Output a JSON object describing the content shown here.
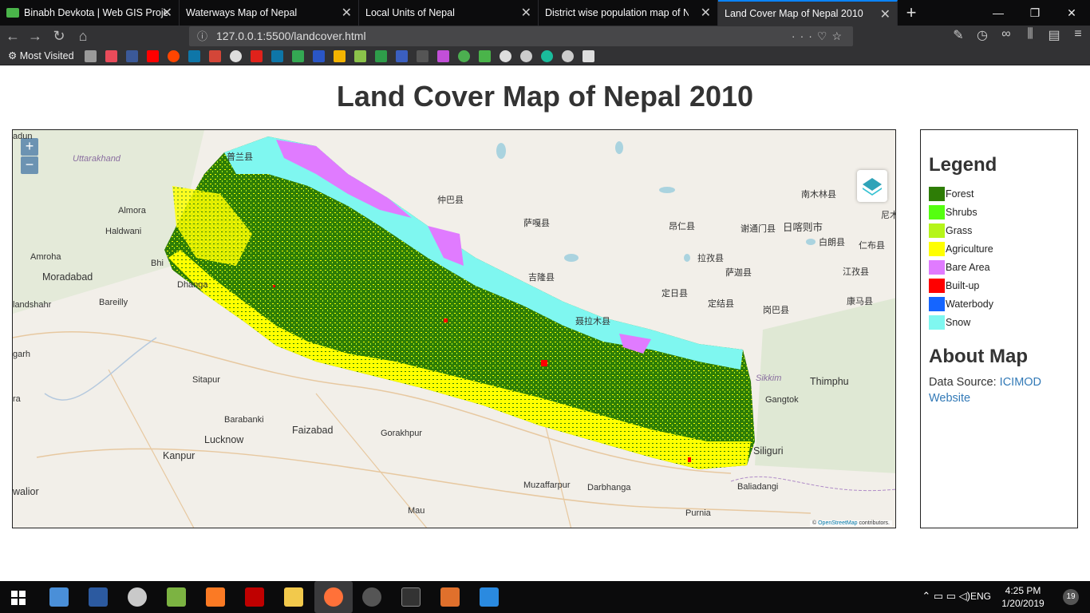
{
  "browser": {
    "tabs": [
      {
        "title": "Binabh Devkota | Web GIS Proje",
        "active": false
      },
      {
        "title": "Waterways Map of Nepal",
        "active": false
      },
      {
        "title": "Local Units of Nepal",
        "active": false
      },
      {
        "title": "District wise population map of Nep",
        "active": false
      },
      {
        "title": "Land Cover Map of Nepal 2010",
        "active": true
      }
    ],
    "url": "127.0.0.1:5500/landcover.html",
    "bookmarks_label": "Most Visited"
  },
  "page": {
    "title": "Land Cover Map of Nepal 2010"
  },
  "map": {
    "zoom_in": "+",
    "zoom_out": "−",
    "attribution_prefix": "© ",
    "attribution_link": "OpenStreetMap",
    "attribution_suffix": " contributors.",
    "places": {
      "uttarakhand": "Uttarakhand",
      "almora": "Almora",
      "haldwani": "Haldwani",
      "amroha": "Amroha",
      "moradabad": "Moradabad",
      "bareilly": "Bareilly",
      "landshahr": "landshahr",
      "dhanga": "Dhanga",
      "garh": "garh",
      "sitapur": "Sitapur",
      "barabanki": "Barabanki",
      "faizabad": "Faizabad",
      "gorakhpur": "Gorakhpur",
      "lucknow": "Lucknow",
      "kanpur": "Kanpur",
      "walior": "walior",
      "ra": "ra",
      "muzaffarpur": "Muzaffarpur",
      "darbhanga": "Darbhanga",
      "purnia": "Purnia",
      "mau": "Mau",
      "siliguri": "Siliguri",
      "baliadangi": "Baliadangi",
      "gangtok": "Gangtok",
      "sikkim": "Sikkim",
      "thimphu": "Thimphu",
      "zhongba": "仲巴县",
      "saga": "萨嘎县",
      "angren": "昂仁县",
      "xietongmen": "谢通门县",
      "shigatse": "日喀则市",
      "bailang": "白朗县",
      "lazi": "拉孜县",
      "sajia": "萨迦县",
      "jilong": "吉隆县",
      "dingri": "定日县",
      "dingjie": "定结县",
      "gangba": "岗巴县",
      "nielamu": "聂拉木县",
      "namling": "南木林县",
      "renbu": "仁布县",
      "jiangzi": "江孜县",
      "kangma": "康马县",
      "purang": "普兰县",
      "nie": "尼木",
      "adun": "adun",
      "bhi": "Bhi"
    }
  },
  "legend": {
    "title": "Legend",
    "items": [
      {
        "label": "Forest",
        "color": "#2e7d06"
      },
      {
        "label": "Shrubs",
        "color": "#55ff10"
      },
      {
        "label": "Grass",
        "color": "#b5f51a"
      },
      {
        "label": "Agriculture",
        "color": "#ffff00"
      },
      {
        "label": "Bare Area",
        "color": "#e07bff"
      },
      {
        "label": "Built-up",
        "color": "#ff0000"
      },
      {
        "label": "Waterbody",
        "color": "#1565ff"
      },
      {
        "label": "Snow",
        "color": "#7ff7f0"
      }
    ]
  },
  "about": {
    "title": "About Map",
    "source_label": "Data Source: ",
    "source_link": "ICIMOD Website"
  },
  "taskbar": {
    "language": "ENG",
    "time": "4:25 PM",
    "date": "1/20/2019",
    "notifications": "19"
  }
}
